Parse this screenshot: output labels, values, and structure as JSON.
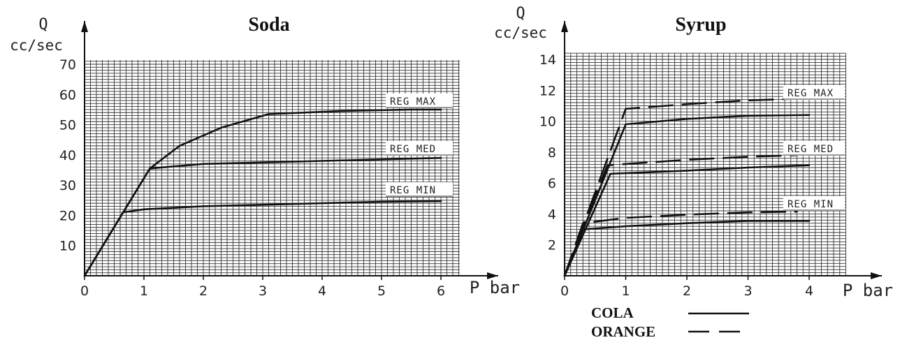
{
  "chart_data": [
    {
      "type": "line",
      "title": "Soda",
      "ylabel_top": "Q",
      "ylabel_unit": "cc/sec",
      "xlabel": "P bar",
      "xlim": [
        0,
        6
      ],
      "ylim": [
        0,
        70
      ],
      "xticks": [
        "0",
        "1",
        "2",
        "3",
        "4",
        "5",
        "6"
      ],
      "yticks": [
        "10",
        "20",
        "30",
        "40",
        "50",
        "60",
        "70"
      ],
      "grid": true,
      "series": [
        {
          "name": "REG MAX",
          "style": "solid",
          "x": [
            0,
            1.1,
            1.6,
            2.3,
            3.1,
            4.3,
            5.5,
            6.0
          ],
          "y": [
            0,
            35.5,
            43,
            49,
            53.5,
            54.5,
            55,
            55
          ]
        },
        {
          "name": "REG MED",
          "style": "solid",
          "x": [
            0,
            1.1,
            2,
            3,
            4,
            5,
            6.0
          ],
          "y": [
            0,
            35.5,
            37,
            37.5,
            38,
            38.5,
            39
          ]
        },
        {
          "name": "REG MIN",
          "style": "solid",
          "x": [
            0,
            0.65,
            1,
            2,
            3,
            4,
            5,
            6.0
          ],
          "y": [
            0,
            21,
            22,
            23,
            23.5,
            24,
            24.5,
            24.7
          ]
        }
      ]
    },
    {
      "type": "line",
      "title": "Syrup",
      "ylabel_top": "Q",
      "ylabel_unit": "cc/sec",
      "xlabel": "P bar",
      "xlim": [
        0,
        4
      ],
      "ylim": [
        0,
        14
      ],
      "xticks": [
        "0",
        "1",
        "2",
        "3",
        "4"
      ],
      "yticks": [
        "2",
        "4",
        "6",
        "8",
        "10",
        "12",
        "14"
      ],
      "grid": true,
      "legend": [
        {
          "label": "COLA",
          "style": "solid"
        },
        {
          "label": "ORANGE",
          "style": "dashed"
        }
      ],
      "region_labels": [
        "REG MAX",
        "REG MED",
        "REG MIN"
      ],
      "series": [
        {
          "group": "REG MAX",
          "legend": "COLA",
          "style": "solid",
          "x": [
            0,
            1.0,
            2,
            3,
            4
          ],
          "y": [
            0,
            9.8,
            10.15,
            10.35,
            10.4
          ]
        },
        {
          "group": "REG MAX",
          "legend": "ORANGE",
          "style": "dashed",
          "x": [
            0,
            1.0,
            2,
            3,
            3.8
          ],
          "y": [
            0,
            10.8,
            11.1,
            11.35,
            11.45
          ]
        },
        {
          "group": "REG MED",
          "legend": "COLA",
          "style": "solid",
          "x": [
            0,
            0.75,
            2,
            3,
            4
          ],
          "y": [
            0,
            6.6,
            6.8,
            7.0,
            7.15
          ]
        },
        {
          "group": "REG MED",
          "legend": "ORANGE",
          "style": "dashed",
          "x": [
            0,
            0.7,
            2,
            3,
            3.8
          ],
          "y": [
            0,
            7.15,
            7.5,
            7.7,
            7.8
          ]
        },
        {
          "group": "REG MIN",
          "legend": "COLA",
          "style": "solid",
          "x": [
            0,
            0.3,
            1,
            2,
            3,
            4
          ],
          "y": [
            0,
            3.0,
            3.2,
            3.4,
            3.55,
            3.55
          ]
        },
        {
          "group": "REG MIN",
          "legend": "ORANGE",
          "style": "dashed",
          "x": [
            0,
            0.3,
            1,
            2,
            3,
            3.8
          ],
          "y": [
            0,
            3.4,
            3.75,
            3.95,
            4.1,
            4.15
          ]
        }
      ]
    }
  ]
}
